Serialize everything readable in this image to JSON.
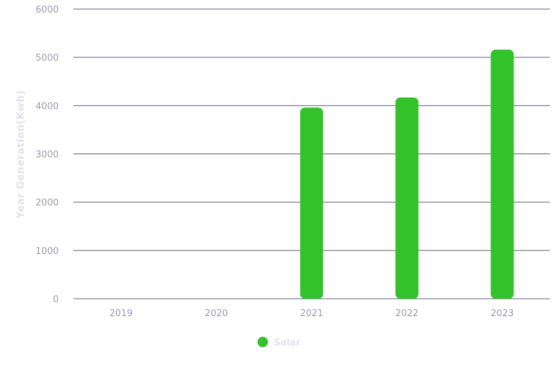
{
  "chart_data": {
    "type": "bar",
    "categories": [
      "2019",
      "2020",
      "2021",
      "2022",
      "2023"
    ],
    "series": [
      {
        "name": "Solar",
        "values": [
          0,
          0,
          3960,
          4170,
          5160
        ],
        "color": "#34c22b"
      }
    ],
    "ylabel": "Year Generation(Kwh)",
    "ylim": [
      0,
      6000
    ],
    "yticks": [
      "0",
      "1000",
      "2000",
      "3000",
      "4000",
      "5000",
      "6000"
    ],
    "grid": true,
    "legend_position": "bottom-center"
  }
}
